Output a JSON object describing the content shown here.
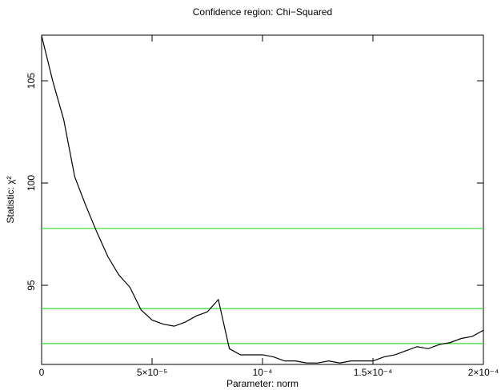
{
  "chart_data": {
    "type": "line",
    "title": "Confidence region: Chi−Squared",
    "x_label": "Parameter: norm",
    "y_label": "Statistic: χ²",
    "xlim": [
      0,
      0.0002
    ],
    "ylim": [
      91.13,
      107.23
    ],
    "xticks": [
      0,
      {
        "value": 5e-05,
        "label": "5×10⁻⁵"
      },
      {
        "value": 0.0001,
        "label": "10⁻⁴"
      },
      {
        "value": 0.00015,
        "label": "1.5×10⁻⁴"
      },
      {
        "value": 0.0002,
        "label": "2×10⁻⁴"
      }
    ],
    "yticks": [
      95,
      100,
      105
    ],
    "x": [
      0,
      5e-06,
      1e-05,
      1.5e-05,
      2e-05,
      2.5e-05,
      3e-05,
      3.5e-05,
      4e-05,
      4.5e-05,
      5e-05,
      5.5e-05,
      6e-05,
      6.5e-05,
      7e-05,
      7.5e-05,
      8e-05,
      8.5e-05,
      9e-05,
      9.5e-05,
      0.0001,
      0.000105,
      0.00011,
      0.000115,
      0.00012,
      0.000125,
      0.00013,
      0.000135,
      0.00014,
      0.000145,
      0.00015,
      0.000155,
      0.00016,
      0.000165,
      0.00017,
      0.000175,
      0.00018,
      0.000185,
      0.00019,
      0.000195,
      0.0002
    ],
    "series": [
      {
        "color": "#000000",
        "values": [
          107.2,
          105.0,
          103.1,
          100.3,
          98.9,
          97.6,
          96.4,
          95.5,
          94.9,
          93.8,
          93.3,
          93.1,
          93.0,
          93.2,
          93.5,
          93.7,
          94.3,
          91.9,
          91.6,
          91.6,
          91.6,
          91.5,
          91.3,
          91.3,
          91.2,
          91.2,
          91.3,
          91.2,
          91.3,
          91.3,
          91.3,
          91.5,
          91.6,
          91.8,
          92.0,
          91.9,
          92.1,
          92.2,
          92.4,
          92.5,
          92.8
        ]
      }
    ],
    "hlines": {
      "color": "#33dd33",
      "values": [
        92.15,
        93.86,
        97.78
      ]
    }
  }
}
